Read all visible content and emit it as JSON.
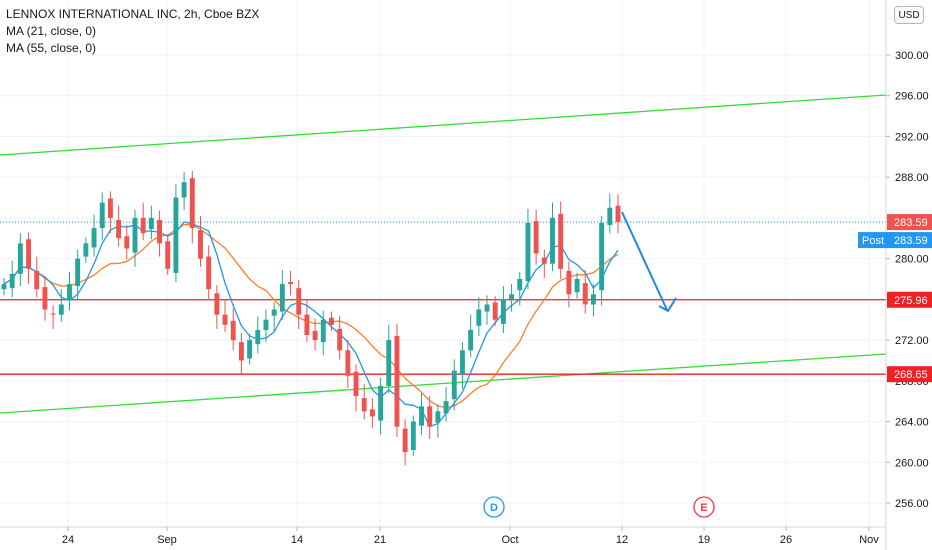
{
  "legend": {
    "symbol_line": "LENNOX INTERNATIONAL INC, 2h, Cboe BZX",
    "ma1": "MA (21, close, 0)",
    "ma2": "MA (55, close, 0)"
  },
  "currency_button": "USD",
  "colors": {
    "up": "#26a69a",
    "down": "#ef5350",
    "ma21": "#2196f3",
    "ma55": "#ff7f2a",
    "channel": "#33dd33",
    "level": "#ee2222",
    "arrow": "#1e88e5",
    "post": "#2196f3"
  },
  "chart_data": {
    "type": "candlestick",
    "y_axis": {
      "ticks": [
        "256.00",
        "260.00",
        "264.00",
        "268.00",
        "272.00",
        "276.00",
        "280.00",
        "284.00",
        "288.00",
        "292.00",
        "296.00",
        "300.00"
      ],
      "range": [
        254,
        302
      ]
    },
    "x_axis": {
      "labels": [
        "24",
        "Sep",
        "14",
        "21",
        "Oct",
        "12",
        "19",
        "26",
        "Nov"
      ]
    },
    "price_labels": {
      "last": "283.59",
      "post_label": "Post",
      "post_value": "283.59",
      "level_1": "275.96",
      "level_2": "268.65"
    },
    "horizontal_levels": [
      275.96,
      268.65
    ],
    "event_markers": [
      {
        "letter": "D",
        "near_label": "Oct"
      },
      {
        "letter": "E",
        "near_label": "19"
      }
    ],
    "close_series": [
      277.5,
      278.5,
      281.5,
      279,
      277,
      275,
      274.5,
      275.5,
      277.5,
      280,
      281.5,
      283,
      285.5,
      284,
      282,
      281,
      284,
      282.5,
      284,
      281.5,
      279,
      286,
      287.5,
      283,
      280,
      277,
      274.5,
      273.5,
      272,
      270,
      272,
      273,
      274,
      275,
      277.5,
      277.5,
      274.5,
      272.5,
      272,
      274,
      273.5,
      271,
      268.5,
      266.5,
      265,
      264.5,
      267.5,
      272,
      263.5,
      261,
      264,
      265.5,
      263.5,
      265,
      266,
      269,
      271,
      273,
      275,
      275.5,
      274,
      276,
      276.5,
      278,
      283.5,
      280.5,
      279.5,
      284,
      279,
      276.5,
      278,
      275.5,
      276.5,
      283.5,
      285,
      283.6
    ]
  }
}
